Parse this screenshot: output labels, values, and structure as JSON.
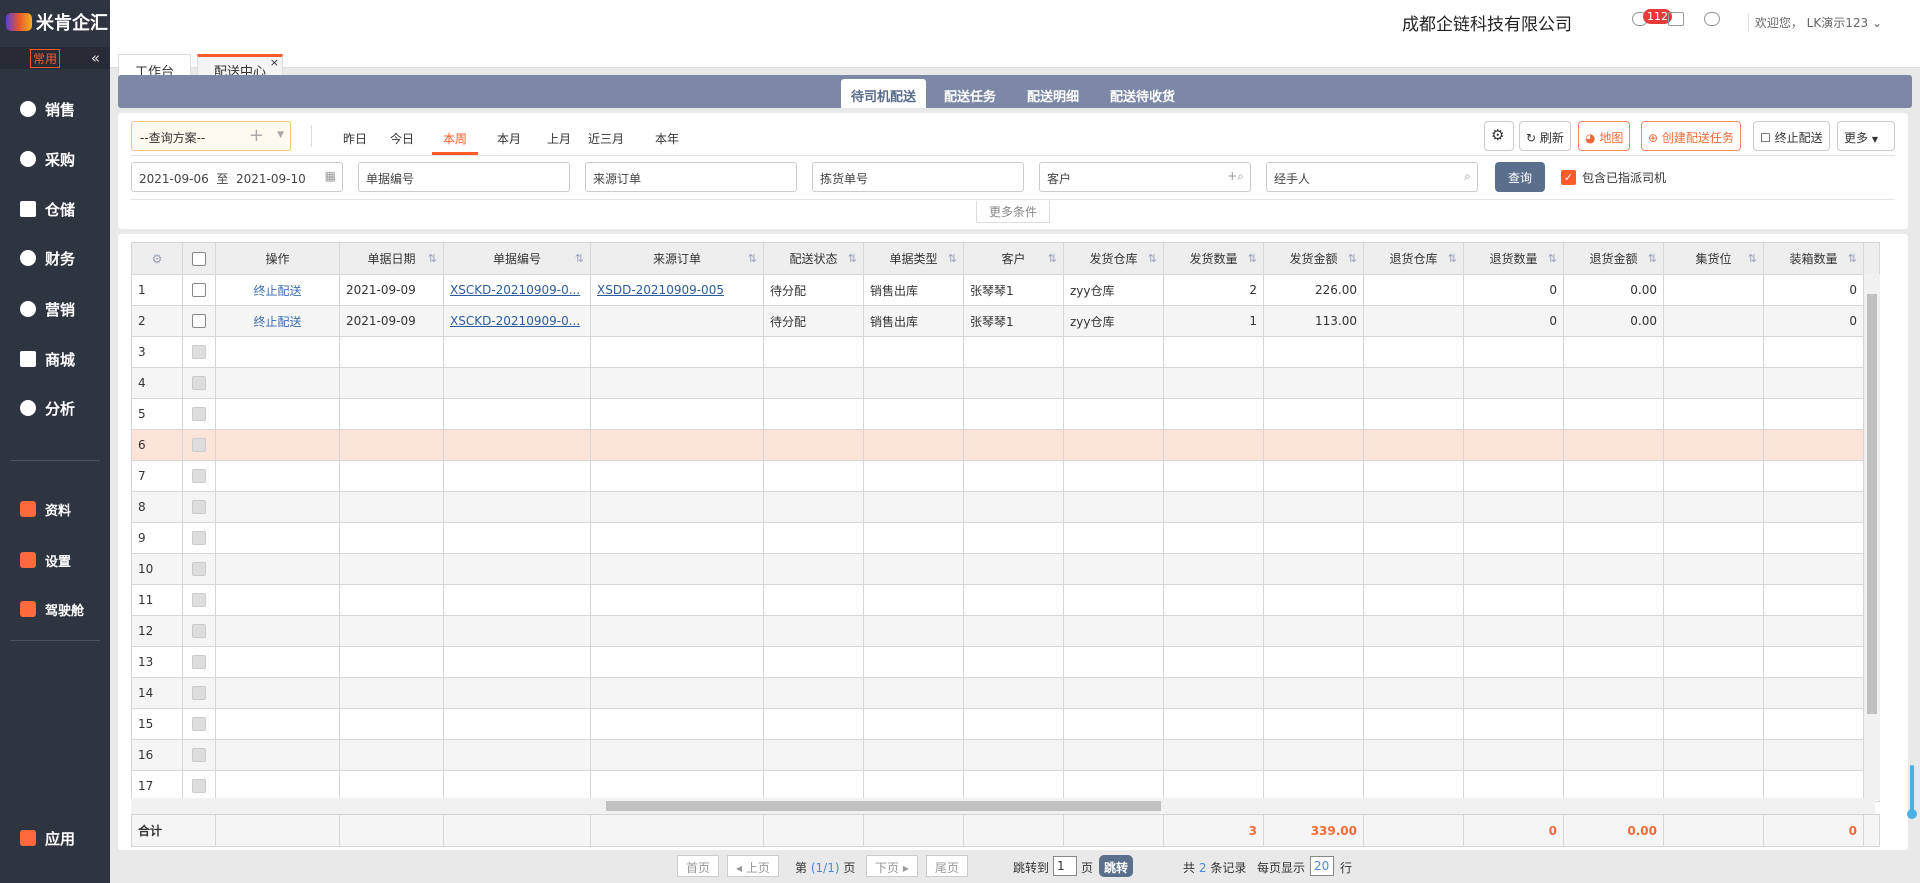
{
  "app": {
    "logo": "米肯企汇",
    "company": "成都企链科技有限公司",
    "welcome": "欢迎您， LK演示123",
    "message_count": "112"
  },
  "sidebar": {
    "common_label": "常用",
    "collapse_icon": "«",
    "items": [
      {
        "label": "销售",
        "icon": "tag-icon"
      },
      {
        "label": "采购",
        "icon": "basket-icon"
      },
      {
        "label": "仓储",
        "icon": "warehouse-icon"
      },
      {
        "label": "财务",
        "icon": "wallet-icon"
      },
      {
        "label": "营销",
        "icon": "megaphone-icon"
      },
      {
        "label": "商城",
        "icon": "store-icon"
      },
      {
        "label": "分析",
        "icon": "chart-icon"
      }
    ],
    "secondary": [
      {
        "label": "资料",
        "icon": "document-icon"
      },
      {
        "label": "设置",
        "icon": "gear-icon"
      },
      {
        "label": "驾驶舱",
        "icon": "dashboard-icon"
      }
    ],
    "apps_label": "应用"
  },
  "page_tabs": [
    {
      "label": "工作台"
    },
    {
      "label": "配送中心",
      "active": true
    }
  ],
  "sub_tabs": [
    "待司机配送",
    "配送任务",
    "配送明细",
    "配送待收货"
  ],
  "filter": {
    "scheme_placeholder": "--查询方案--",
    "date_tabs": [
      "昨日",
      "今日",
      "本周",
      "本月",
      "上月",
      "近三月",
      "本年"
    ],
    "active_date_tab": "本周",
    "date_range": "2021-09-06  至  2021-09-10",
    "doc_no_placeholder": "单据编号",
    "source_order_placeholder": "来源订单",
    "pick_no_placeholder": "拣货单号",
    "customer_placeholder": "客户",
    "handler_placeholder": "经手人",
    "query_button": "查询",
    "include_assigned_label": "包含已指派司机",
    "include_assigned_checked": true,
    "more_conditions": "更多条件"
  },
  "toolbar": {
    "refresh": "刷新",
    "map": "地图",
    "create_task": "创建配送任务",
    "stop_delivery": "终止配送",
    "more": "更多"
  },
  "table": {
    "columns": [
      "操作",
      "单据日期",
      "单据编号",
      "来源订单",
      "配送状态",
      "单据类型",
      "客户",
      "发货仓库",
      "发货数量",
      "发货金额",
      "退货仓库",
      "退货数量",
      "退货金额",
      "集货位",
      "装箱数量"
    ],
    "rows": [
      {
        "no": "1",
        "op": "终止配送",
        "date": "2021-09-09",
        "doc_no": "XSCKD-20210909-0...",
        "source": "XSDD-20210909-005",
        "status": "待分配",
        "type": "销售出库",
        "customer": "张琴琴1",
        "warehouse": "zyy仓库",
        "qty": "2",
        "amount": "226.00",
        "ret_wh": "",
        "ret_qty": "0",
        "ret_amount": "0.00",
        "slot": "",
        "box_qty": "0"
      },
      {
        "no": "2",
        "op": "终止配送",
        "date": "2021-09-09",
        "doc_no": "XSCKD-20210909-0...",
        "source": "",
        "status": "待分配",
        "type": "销售出库",
        "customer": "张琴琴1",
        "warehouse": "zyy仓库",
        "qty": "1",
        "amount": "113.00",
        "ret_wh": "",
        "ret_qty": "0",
        "ret_amount": "0.00",
        "slot": "",
        "box_qty": "0"
      }
    ],
    "empty_row_numbers": [
      "3",
      "4",
      "5",
      "6",
      "7",
      "8",
      "9",
      "10",
      "11",
      "12",
      "13",
      "14",
      "15",
      "16",
      "17"
    ],
    "highlighted_row": "6",
    "footer": {
      "label": "合计",
      "qty": "3",
      "amount": "339.00",
      "ret_qty": "0",
      "ret_amount": "0.00",
      "box_qty": "0"
    }
  },
  "pager": {
    "first": "首页",
    "prev": "上页",
    "page_prefix": "第",
    "page_info": "(1/1)",
    "page_suffix": "页",
    "next": "下页",
    "last": "尾页",
    "jump_to": "跳转到",
    "jump_value": "1",
    "jump_unit": "页",
    "jump_button": "跳转",
    "total_prefix": "共",
    "total": "2",
    "total_suffix": "条记录",
    "per_page_prefix": "每页显示",
    "per_page": "20",
    "per_page_suffix": "行"
  },
  "colors": {
    "accent": "#ff5a2a",
    "sidebar": "#2e3440",
    "subbar": "#7d87a6",
    "query": "#5a6f8c",
    "highlight_row": "#fde4d9"
  }
}
